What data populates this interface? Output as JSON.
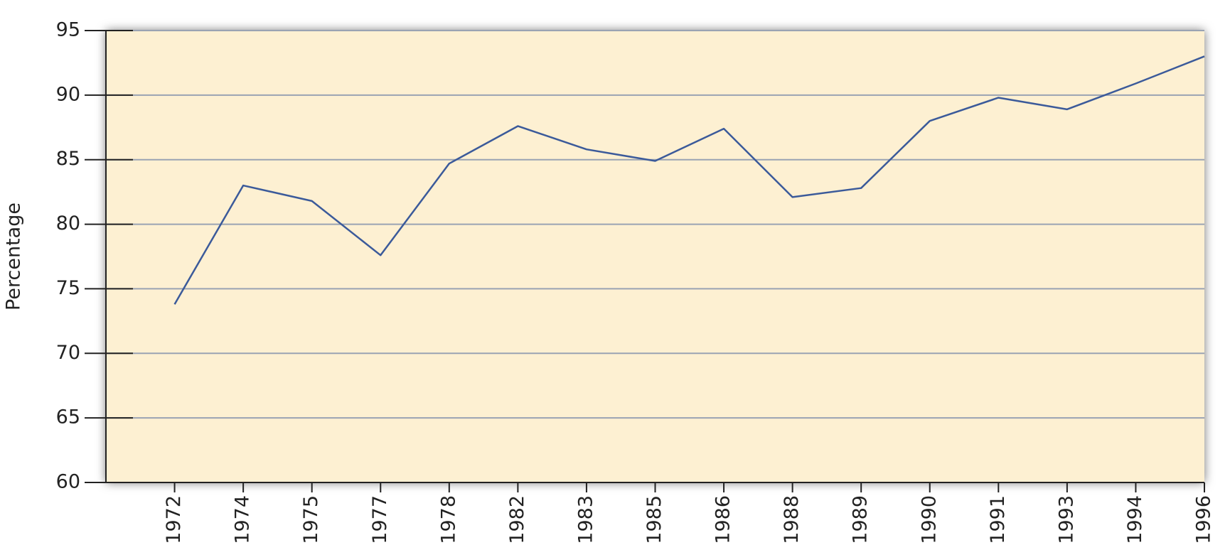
{
  "chart_data": {
    "type": "line",
    "y_label": "Percentage",
    "categories": [
      "1972",
      "1974",
      "1975",
      "1977",
      "1978",
      "1982",
      "1983",
      "1985",
      "1986",
      "1988",
      "1989",
      "1990",
      "1991",
      "1993",
      "1994",
      "1996"
    ],
    "series": [
      {
        "name": "Percentage",
        "color": "#3b5a9a",
        "values": [
          73.8,
          83.0,
          81.8,
          77.6,
          84.7,
          87.6,
          85.8,
          84.9,
          87.4,
          82.1,
          82.8,
          88.0,
          89.8,
          88.9,
          90.9,
          93.0
        ]
      }
    ],
    "ylim": [
      60,
      95
    ],
    "yticks": [
      60,
      65,
      70,
      75,
      80,
      85,
      90,
      95
    ],
    "grid": true,
    "background": "#fdf0d2"
  }
}
